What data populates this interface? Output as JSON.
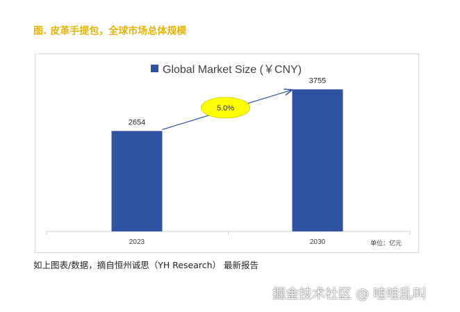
{
  "figure_title": "图. 皮革手提包，全球市场总体规模",
  "caption": "如上图表/数据，摘自恒州诚思（YH Research） 最新报告",
  "watermark": "掘金技术社区 @ 哇哇乱叫",
  "chart_data": {
    "type": "bar",
    "title": "",
    "legend": "Global Market Size (￥CNY)",
    "legend_position": "top",
    "categories": [
      "2023",
      "2030"
    ],
    "values": [
      2654,
      3755
    ],
    "ylim": [
      0,
      4500
    ],
    "unit_label": "单位：亿元",
    "cagr_label": "5.0%",
    "grid": false,
    "bar_color": "#2f53a3",
    "annotation_color": "#ffff00"
  }
}
